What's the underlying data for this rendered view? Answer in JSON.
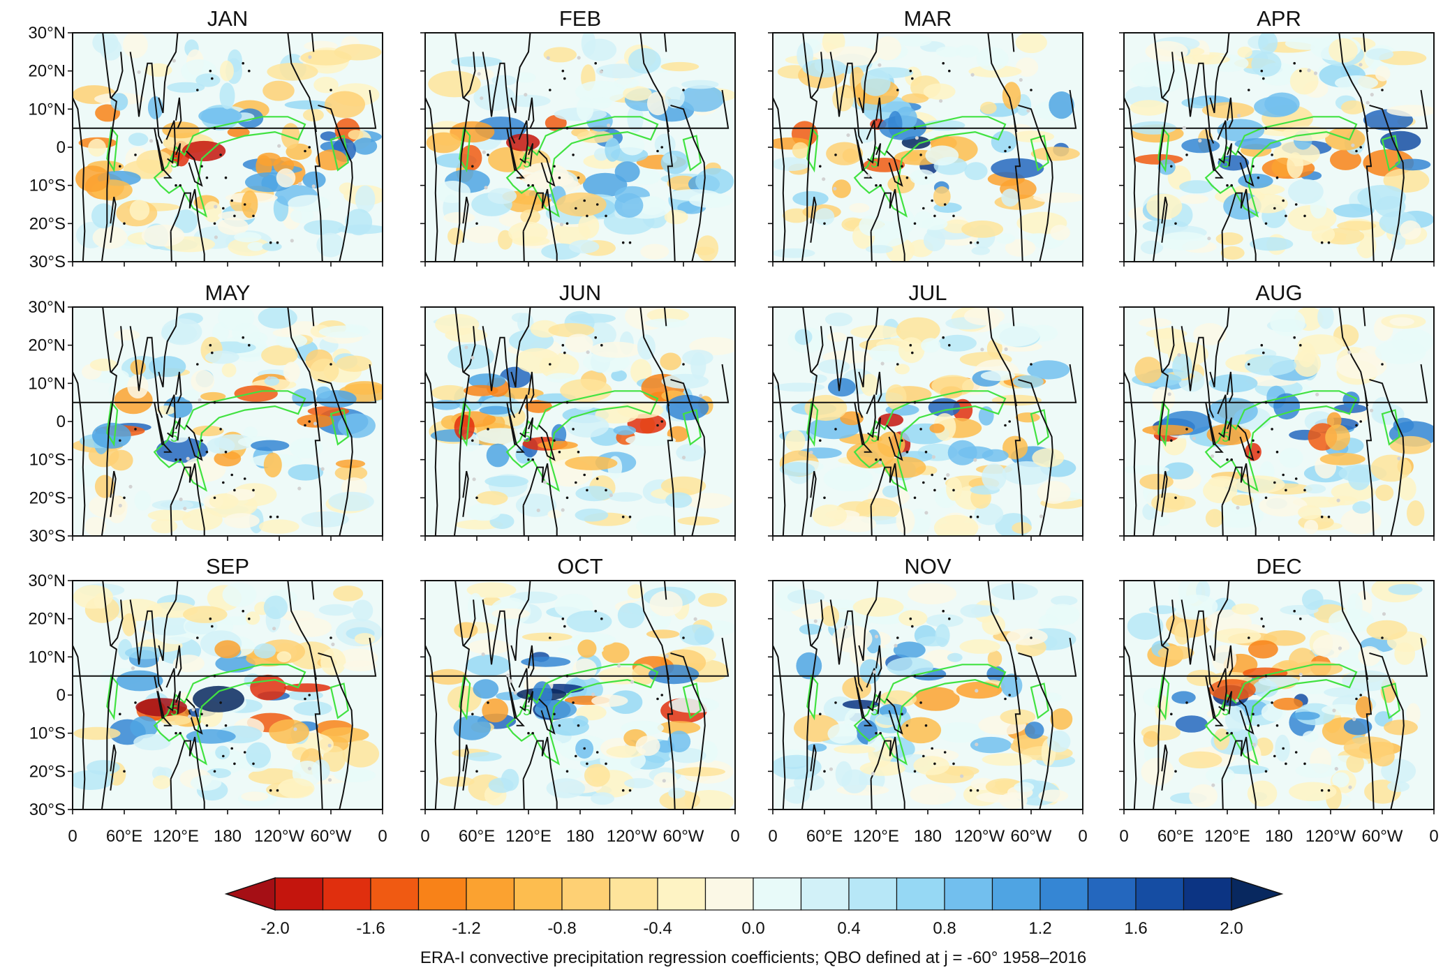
{
  "chart_data": {
    "type": "heatmap",
    "panels": [
      {
        "title": "JAN"
      },
      {
        "title": "FEB"
      },
      {
        "title": "MAR"
      },
      {
        "title": "APR"
      },
      {
        "title": "MAY"
      },
      {
        "title": "JUN"
      },
      {
        "title": "JUL"
      },
      {
        "title": "AUG"
      },
      {
        "title": "SEP"
      },
      {
        "title": "OCT"
      },
      {
        "title": "NOV"
      },
      {
        "title": "DEC"
      }
    ],
    "lat_ticks": [
      "30°N",
      "20°N",
      "10°N",
      "0",
      "10°S",
      "20°S",
      "30°S"
    ],
    "lat_values": [
      30,
      20,
      10,
      0,
      -10,
      -20,
      -30
    ],
    "lon_ticks": [
      "0",
      "60°E",
      "120°E",
      "180",
      "120°W",
      "60°W",
      "0"
    ],
    "lon_values": [
      0,
      60,
      120,
      180,
      240,
      300,
      360
    ],
    "lat_range": [
      -30,
      30
    ],
    "lon_range": [
      0,
      360
    ],
    "contour_label": "5",
    "colorbar": {
      "min": -2.0,
      "max": 2.0,
      "step": 0.2,
      "extend": "both",
      "tick_labels": [
        "-2.0",
        "-1.6",
        "-1.2",
        "-0.8",
        "-0.4",
        "0.0",
        "0.4",
        "0.8",
        "1.2",
        "1.6",
        "2.0"
      ],
      "colors": [
        "#a50f15",
        "#c4150d",
        "#e02f0e",
        "#f05a12",
        "#f88218",
        "#fba230",
        "#fdbd4f",
        "#fed074",
        "#fee49b",
        "#fef3c4",
        "#fbf8e6",
        "#e8faf9",
        "#d2f1f8",
        "#b7e7f7",
        "#96d8f4",
        "#72bfee",
        "#4fa4e3",
        "#3586d4",
        "#2467be",
        "#154da3",
        "#0c3483",
        "#08285f"
      ],
      "label": "ERA-I convective precipitation regression coefficients; QBO defined at j = -60° 1958–2016"
    },
    "colors": {
      "contour": "#41e241",
      "coast": "#111111",
      "stipple": "#d2d2d2"
    }
  }
}
